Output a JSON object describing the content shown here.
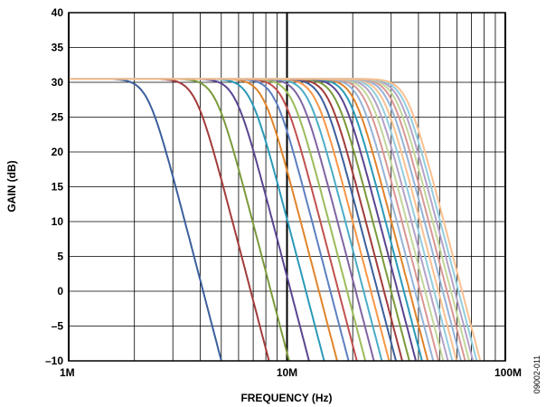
{
  "chart_data": {
    "type": "line",
    "title": "",
    "xlabel": "FREQUENCY (Hz)",
    "ylabel": "GAIN (dB)",
    "xscale": "log",
    "xlim": [
      1000000,
      100000000
    ],
    "ylim": [
      -10,
      40
    ],
    "grid": true,
    "x_ticks": [
      {
        "value": 1000000,
        "label": "1M"
      },
      {
        "value": 10000000,
        "label": "10M"
      },
      {
        "value": 100000000,
        "label": "100M"
      }
    ],
    "y_ticks": [
      {
        "value": 40,
        "label": "40"
      },
      {
        "value": 35,
        "label": "35"
      },
      {
        "value": 30,
        "label": "30"
      },
      {
        "value": 25,
        "label": "25"
      },
      {
        "value": 20,
        "label": "20"
      },
      {
        "value": 15,
        "label": "15"
      },
      {
        "value": 10,
        "label": "10"
      },
      {
        "value": 5,
        "label": "5"
      },
      {
        "value": 0,
        "label": "0"
      },
      {
        "value": -5,
        "label": "–5"
      },
      {
        "value": -10,
        "label": "–10"
      }
    ],
    "passband_gain_db": 30.5,
    "series": [
      {
        "color": "#3b5f9c",
        "cutoff_hz": 2300000
      },
      {
        "color": "#a23b3b",
        "cutoff_hz": 3800000
      },
      {
        "color": "#7b9a3b",
        "cutoff_hz": 4700000
      },
      {
        "color": "#5a4590",
        "cutoff_hz": 5800000
      },
      {
        "color": "#2a9ab8",
        "cutoff_hz": 6800000
      },
      {
        "color": "#e0842a",
        "cutoff_hz": 7800000
      },
      {
        "color": "#5d7fc0",
        "cutoff_hz": 8800000
      },
      {
        "color": "#c0504d",
        "cutoff_hz": 9600000
      },
      {
        "color": "#9bbb59",
        "cutoff_hz": 10500000
      },
      {
        "color": "#8064a2",
        "cutoff_hz": 11500000
      },
      {
        "color": "#4bacc6",
        "cutoff_hz": 12500000
      },
      {
        "color": "#f79646",
        "cutoff_hz": 13500000
      },
      {
        "color": "#3b5f9c",
        "cutoff_hz": 14500000
      },
      {
        "color": "#a23b3b",
        "cutoff_hz": 15500000
      },
      {
        "color": "#7b9a3b",
        "cutoff_hz": 16700000
      },
      {
        "color": "#5a4590",
        "cutoff_hz": 17900000
      },
      {
        "color": "#2a9ab8",
        "cutoff_hz": 19100000
      },
      {
        "color": "#e0842a",
        "cutoff_hz": 20300000
      },
      {
        "color": "#95b3d7",
        "cutoff_hz": 21500000
      },
      {
        "color": "#d99694",
        "cutoff_hz": 22700000
      },
      {
        "color": "#c3d69b",
        "cutoff_hz": 23900000
      },
      {
        "color": "#b3a2c7",
        "cutoff_hz": 25100000
      },
      {
        "color": "#93cddd",
        "cutoff_hz": 26300000
      },
      {
        "color": "#fac090",
        "cutoff_hz": 27500000
      },
      {
        "color": "#95b3d7",
        "cutoff_hz": 28800000
      },
      {
        "color": "#d99694",
        "cutoff_hz": 30100000
      },
      {
        "color": "#c3d69b",
        "cutoff_hz": 31400000
      },
      {
        "color": "#b3a2c7",
        "cutoff_hz": 32700000
      },
      {
        "color": "#93cddd",
        "cutoff_hz": 34000000
      },
      {
        "color": "#fac090",
        "cutoff_hz": 35300000
      }
    ]
  },
  "figure_id": "09002-011"
}
